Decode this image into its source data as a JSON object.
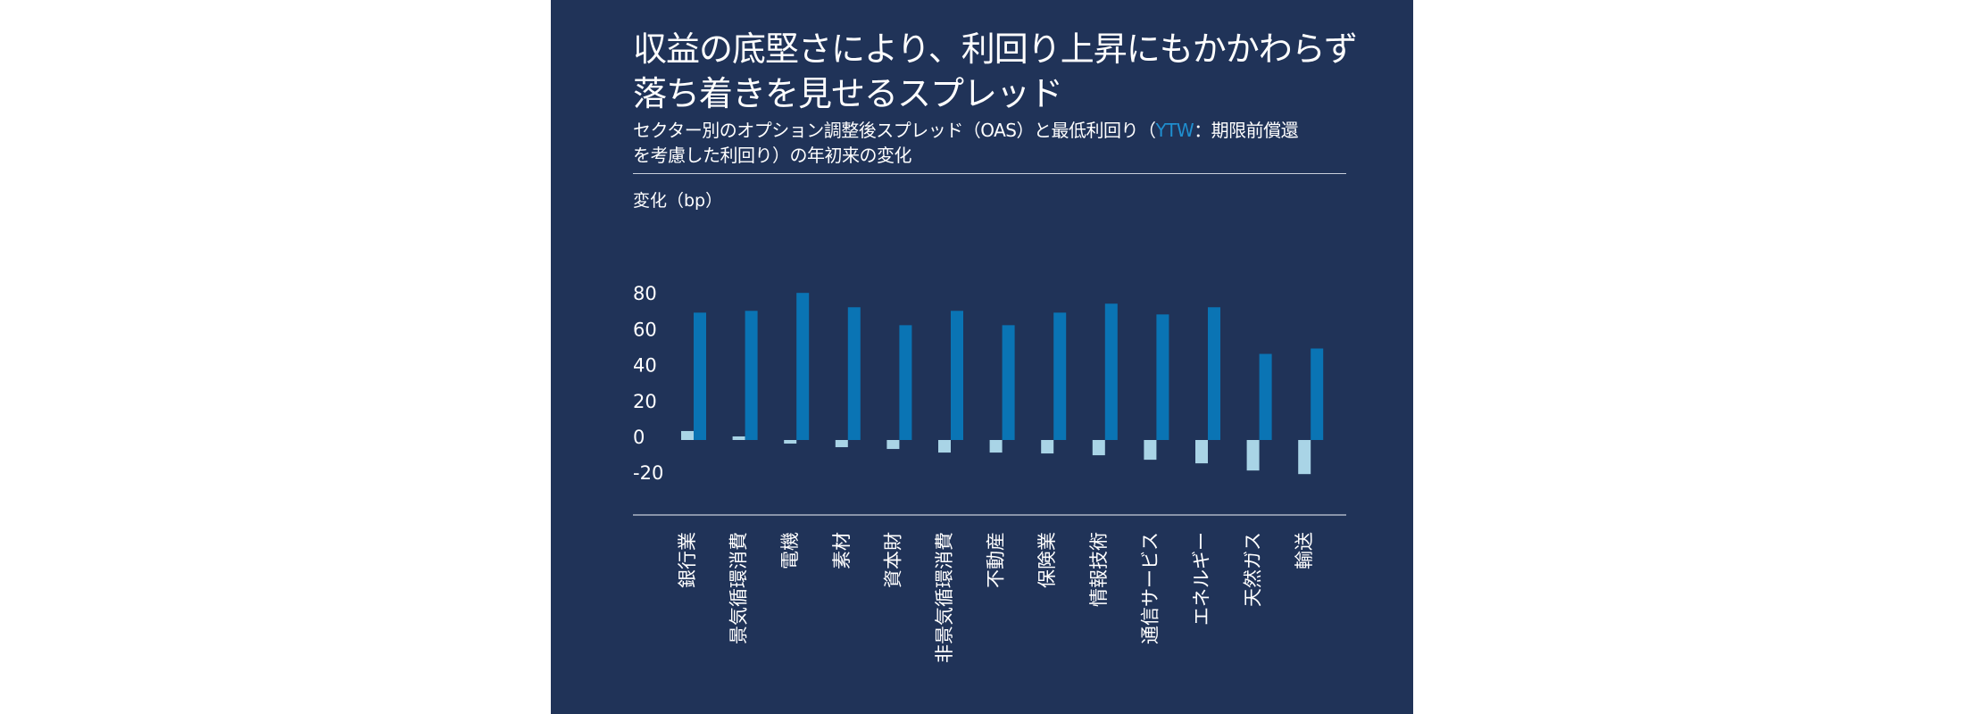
{
  "title_lines": [
    "収益の底堅さにより、利回り上昇にもかかわらず",
    "落ち着きを見せるスプレッド"
  ],
  "subtitle": {
    "line1_before": "セクター別のオプション調整後スプレッド（OAS）と最低利回り（",
    "line1_highlight": "YTW",
    "line1_after": "：期限前償還",
    "line2": "を考慮した利回り）の年初来の変化"
  },
  "colors": {
    "background": "#203358",
    "oas": "#a9d4e6",
    "ytw": "#0a74b4",
    "highlight": "#1f8fd0"
  },
  "chart_data": {
    "type": "bar",
    "ylabel": "変化（bp）",
    "ylim": [
      -30,
      90
    ],
    "yticks": [
      80,
      60,
      40,
      20,
      0,
      -20
    ],
    "grid": false,
    "categories": [
      "銀行業",
      "景気循環消費",
      "電機",
      "素材",
      "資本財",
      "非景気循環消費",
      "不動産",
      "保険業",
      "情報技術",
      "通信サービス",
      "エネルギー",
      "天然ガス",
      "輸送"
    ],
    "series": [
      {
        "key": "OAS",
        "color": "#a9d4e6",
        "values": [
          5,
          2,
          -2,
          -4,
          -5,
          -7,
          -7,
          -7.5,
          -8.5,
          -11,
          -13,
          -17,
          -19
        ]
      },
      {
        "key": "YTW",
        "color": "#0a74b4",
        "values": [
          71,
          72,
          82,
          74,
          64,
          72,
          64,
          71,
          76,
          70,
          74,
          48,
          51
        ]
      }
    ]
  }
}
